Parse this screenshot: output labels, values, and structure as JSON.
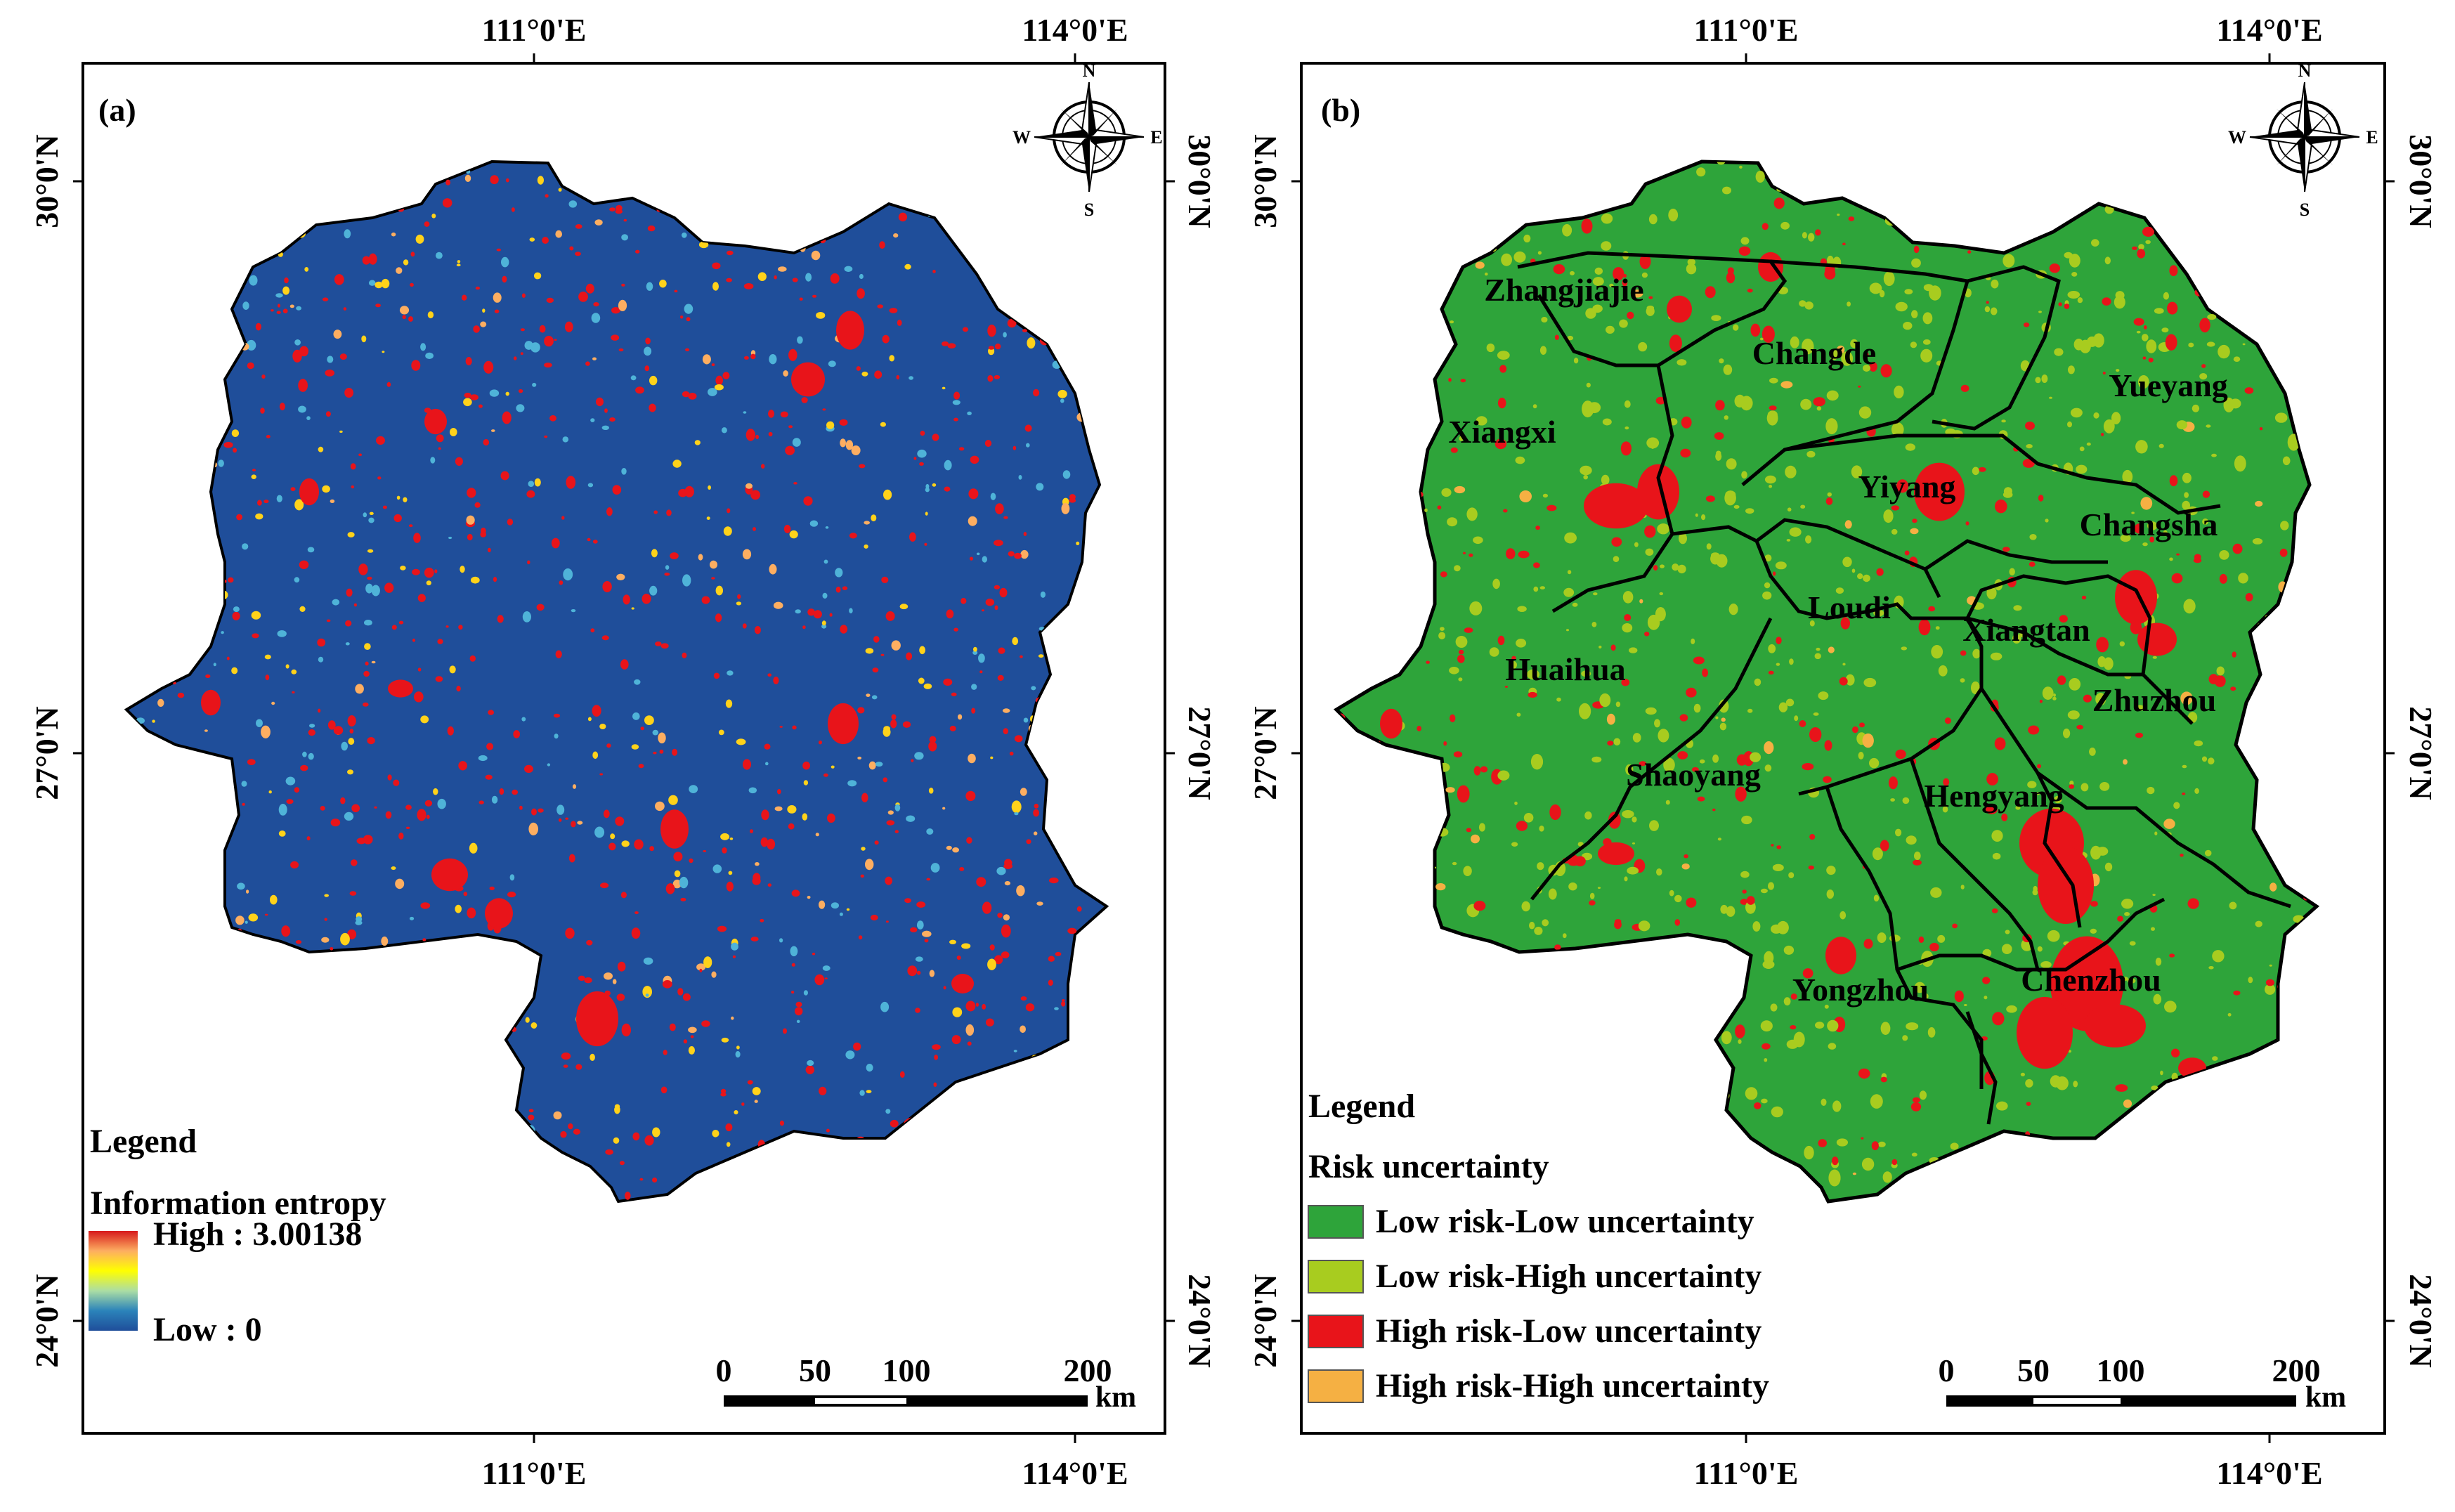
{
  "panels": [
    {
      "label": "(a)",
      "lon_ticks_top": [
        "111°0'E",
        "114°0'E"
      ],
      "lon_ticks_bottom": [
        "111°0'E",
        "114°0'E"
      ],
      "lat_ticks_left": [
        "30°0'N",
        "27°0'N",
        "24°0'N"
      ],
      "lat_ticks_right": [
        "30°0'N",
        "27°0'N",
        "24°0'N"
      ],
      "north_arrow": {
        "n": "N",
        "s": "S",
        "e": "E",
        "w": "W"
      },
      "scale_bar": {
        "ticks": [
          "0",
          "50",
          "100",
          "200"
        ],
        "unit": "km"
      },
      "legend": {
        "title": "Legend",
        "subtitle": "Information entropy",
        "high": "High : 3.00138",
        "low": "Low : 0",
        "gradient": [
          "#d7191c",
          "#fdae61",
          "#ffff00",
          "#abdda4",
          "#2b83ba",
          "#1f4e9a"
        ]
      },
      "colors": {
        "base": "#1f4e9a",
        "hot": "#e8141a",
        "warm": "#ffd21a",
        "cool": "#4fb3d8"
      }
    },
    {
      "label": "(b)",
      "lon_ticks_top": [
        "111°0'E",
        "114°0'E"
      ],
      "lon_ticks_bottom": [
        "111°0'E",
        "114°0'E"
      ],
      "lat_ticks_left": [
        "30°0'N",
        "27°0'N",
        "24°0'N"
      ],
      "lat_ticks_right": [
        "30°0'N",
        "27°0'N",
        "24°0'N"
      ],
      "north_arrow": {
        "n": "N",
        "s": "S",
        "e": "E",
        "w": "W"
      },
      "scale_bar": {
        "ticks": [
          "0",
          "50",
          "100",
          "200"
        ],
        "unit": "km"
      },
      "regions": [
        "Zhangjiajie",
        "Changde",
        "Yueyang",
        "Xiangxi",
        "Yiyang",
        "Changsha",
        "Loudi",
        "Xiangtan",
        "Huaihua",
        "Zhuzhou",
        "Shaoyang",
        "Hengyang",
        "Yongzhou",
        "Chenzhou"
      ],
      "legend": {
        "title": "Legend",
        "subtitle": "Risk uncertainty",
        "items": [
          {
            "label": "Low risk-Low uncertainty",
            "color": "#2ea43a"
          },
          {
            "label": "Low risk-High uncertainty",
            "color": "#a8cc1f"
          },
          {
            "label": "High risk-Low uncertainty",
            "color": "#e8141a"
          },
          {
            "label": "High risk-High uncertainty",
            "color": "#f5b043"
          }
        ]
      }
    }
  ]
}
